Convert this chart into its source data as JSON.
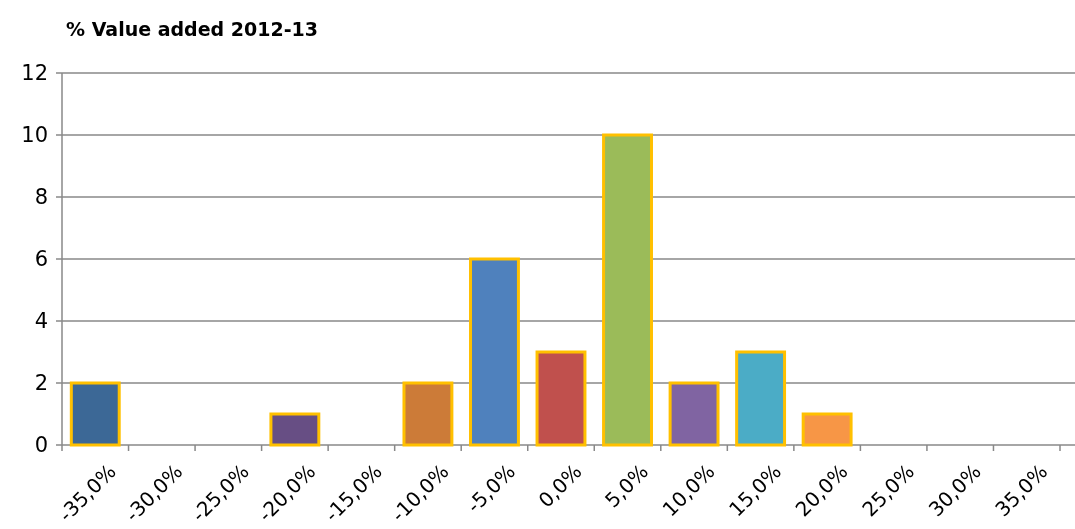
{
  "chart_data": {
    "type": "bar",
    "title": "% Value added 2012-13",
    "categories": [
      "-35,0%",
      "-30,0%",
      "-25,0%",
      "-20,0%",
      "-15,0%",
      "-10,0%",
      "-5,0%",
      "0,0%",
      "5,0%",
      "10,0%",
      "15,0%",
      "20,0%",
      "25,0%",
      "30,0%",
      "35,0%"
    ],
    "values": [
      2,
      0,
      0,
      1,
      0,
      2,
      6,
      3,
      10,
      2,
      3,
      1,
      0,
      0,
      0
    ],
    "colors": [
      "#3c6896",
      "#9b3c3a",
      "#7a9440",
      "#674e84",
      "#3b8ea3",
      "#cc7b38",
      "#4f81bd",
      "#c0504d",
      "#9bbb59",
      "#8064a2",
      "#4bacc6",
      "#f79646",
      "#7f9fcc",
      "#cf8180",
      "#b5cd85"
    ],
    "ylim": [
      0,
      12
    ],
    "yticks": [
      0,
      2,
      4,
      6,
      8,
      10,
      12
    ],
    "grid": "y"
  }
}
